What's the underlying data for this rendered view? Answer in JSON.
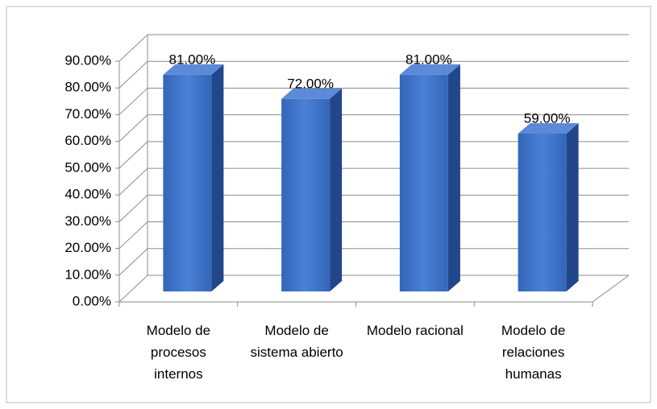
{
  "chart_data": {
    "type": "bar3d",
    "categories": [
      "Modelo de procesos internos",
      "Modelo de sistema abierto",
      "Modelo racional",
      "Modelo de relaciones humanas"
    ],
    "values": [
      81,
      72,
      81,
      59
    ],
    "value_labels": [
      "81.00%",
      "72.00%",
      "81.00%",
      "59.00%"
    ],
    "color": "#3a6cc2",
    "ylim": [
      0,
      90
    ],
    "yticks": [
      {
        "value": 0,
        "label": "0.00%"
      },
      {
        "value": 10,
        "label": "10.00%"
      },
      {
        "value": 20,
        "label": "20.00%"
      },
      {
        "value": 30,
        "label": "30.00%"
      },
      {
        "value": 40,
        "label": "40.00%"
      },
      {
        "value": 50,
        "label": "50.00%"
      },
      {
        "value": 60,
        "label": "60.00%"
      },
      {
        "value": 70,
        "label": "70.00%"
      },
      {
        "value": 80,
        "label": "80.00%"
      },
      {
        "value": 90,
        "label": "90.00%"
      }
    ],
    "grid": true
  }
}
